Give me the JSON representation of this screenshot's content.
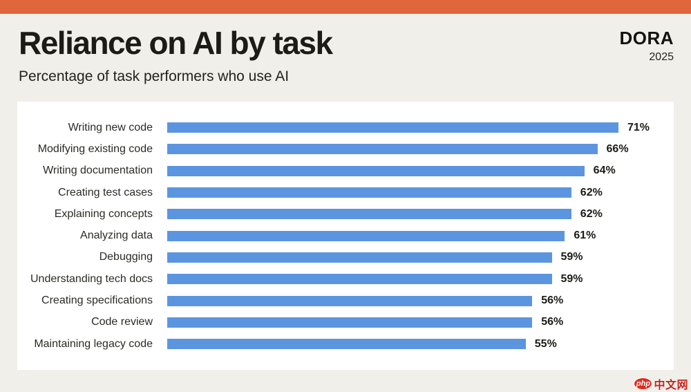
{
  "page": {
    "top_bar_color": "#E0663C",
    "background_color": "#F0EFE9",
    "panel_color": "#FFFFFF"
  },
  "header": {
    "title": "Reliance on AI by task",
    "subtitle": "Percentage of task performers who use AI",
    "logo": "DORA",
    "year": "2025"
  },
  "chart_data": {
    "type": "bar",
    "orientation": "horizontal",
    "title": "Reliance on AI by task",
    "subtitle": "Percentage of task performers who use AI",
    "categories": [
      "Writing new code",
      "Modifying existing code",
      "Writing documentation",
      "Creating test cases",
      "Explaining concepts",
      "Analyzing data",
      "Debugging",
      "Understanding tech docs",
      "Creating specifications",
      "Code review",
      "Maintaining legacy code"
    ],
    "values": [
      71,
      66,
      64,
      62,
      62,
      61,
      59,
      59,
      56,
      56,
      55
    ],
    "value_suffix": "%",
    "bar_color": "#5B95E0",
    "xlim": [
      0,
      74
    ],
    "grid": false,
    "legend": false,
    "data_labels": "end-of-bar, bold"
  },
  "watermark": {
    "badge": "php",
    "text": "中文网",
    "color": "#C6221B"
  }
}
